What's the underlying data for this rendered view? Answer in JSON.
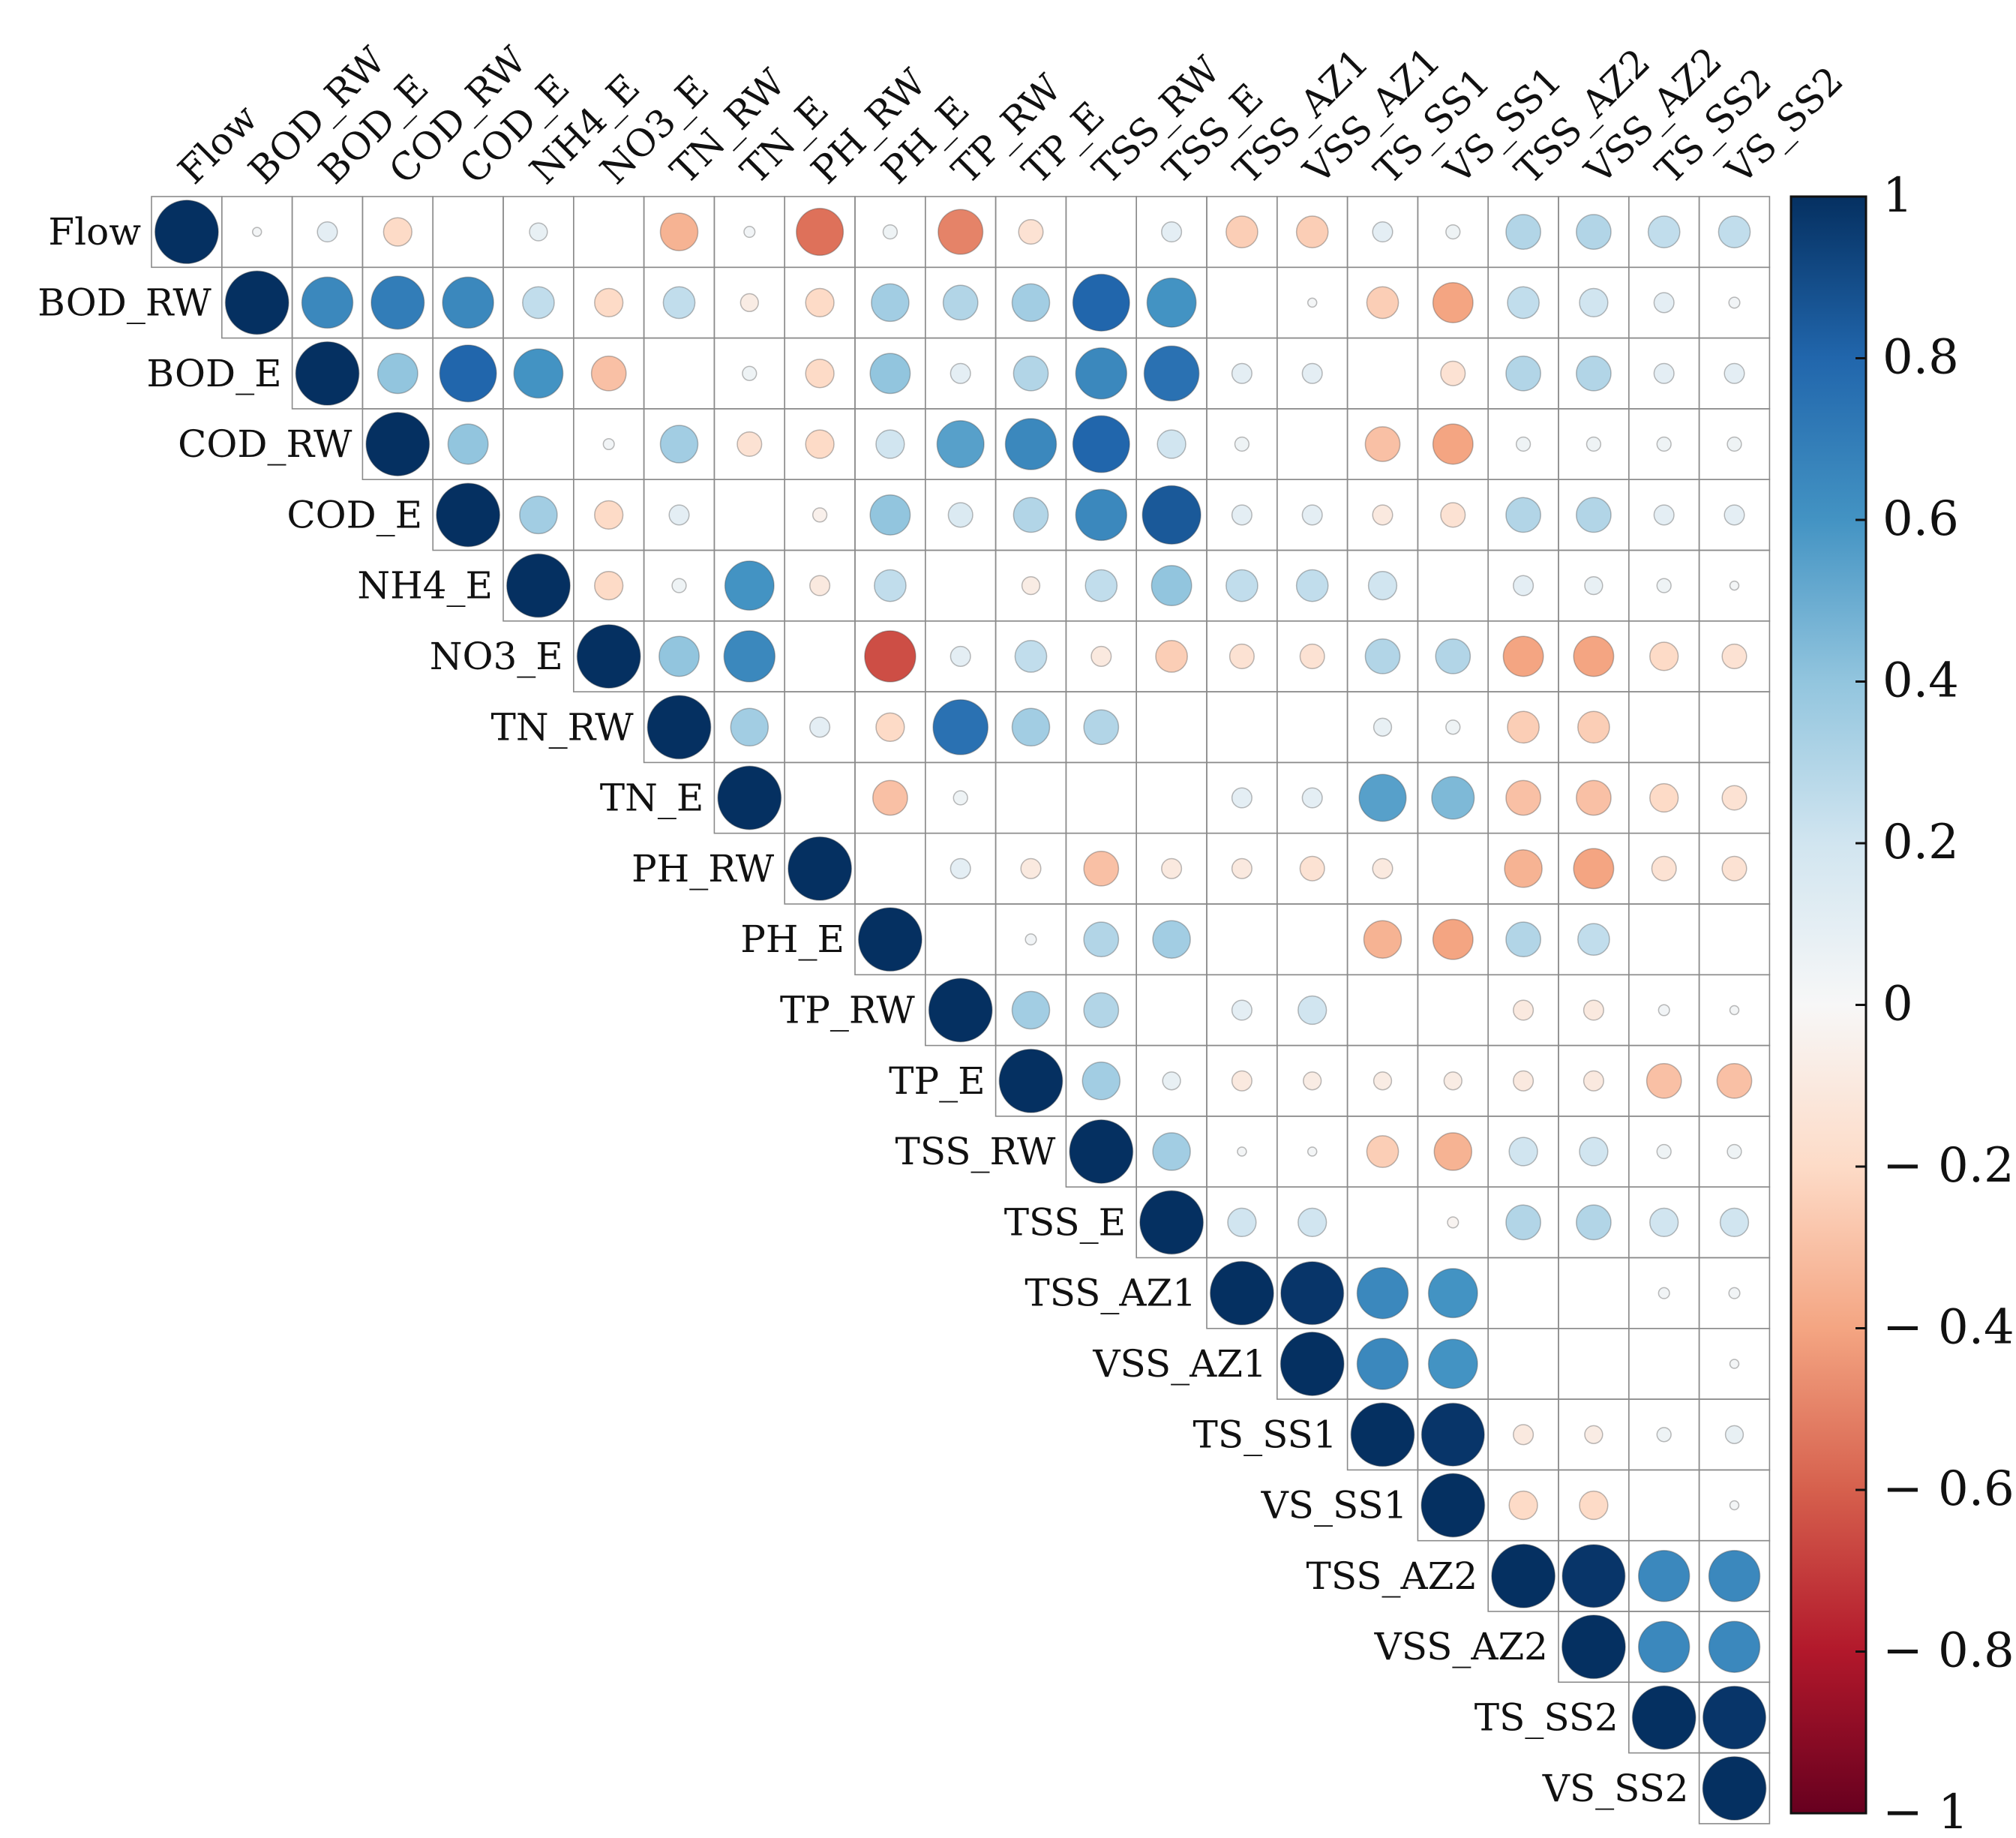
{
  "chart_data": {
    "type": "heatmap",
    "subtype": "upper-triangle correlation matrix (circle glyphs)",
    "title": "",
    "variables": [
      "Flow",
      "BOD_RW",
      "BOD_E",
      "COD_RW",
      "COD_E",
      "NH4_E",
      "NO3_E",
      "TN_RW",
      "TN_E",
      "PH_RW",
      "PH_E",
      "TP_RW",
      "TP_E",
      "TSS_RW",
      "TSS_E",
      "TSS_AZ1",
      "VSS_AZ1",
      "TS_SS1",
      "VS_SS1",
      "TSS_AZ2",
      "VSS_AZ2",
      "TS_SS2",
      "VS_SS2"
    ],
    "matrix": [
      [
        1.0,
        0.02,
        0.1,
        -0.2,
        0.0,
        0.08,
        0.0,
        -0.35,
        0.03,
        -0.55,
        0.05,
        -0.5,
        -0.15,
        0.0,
        0.1,
        -0.25,
        -0.25,
        0.1,
        0.05,
        0.3,
        0.3,
        0.25,
        0.25
      ],
      [
        null,
        1.0,
        0.65,
        0.7,
        0.65,
        0.25,
        -0.2,
        0.25,
        -0.08,
        -0.2,
        0.35,
        0.3,
        0.35,
        0.8,
        0.6,
        0.0,
        0.02,
        -0.25,
        -0.4,
        0.25,
        0.2,
        0.1,
        0.03
      ],
      [
        null,
        null,
        1.0,
        0.4,
        0.8,
        0.6,
        -0.3,
        0.0,
        0.05,
        -0.2,
        0.4,
        0.1,
        0.3,
        0.65,
        0.75,
        0.1,
        0.1,
        0.0,
        -0.15,
        0.3,
        0.3,
        0.1,
        0.1
      ],
      [
        null,
        null,
        null,
        1.0,
        0.4,
        0.0,
        0.03,
        0.35,
        -0.15,
        -0.2,
        0.2,
        0.55,
        0.65,
        0.8,
        0.2,
        0.05,
        0.0,
        -0.3,
        -0.4,
        0.05,
        0.05,
        0.05,
        0.05
      ],
      [
        null,
        null,
        null,
        null,
        1.0,
        0.35,
        -0.2,
        0.1,
        0.0,
        -0.05,
        0.4,
        0.15,
        0.3,
        0.65,
        0.85,
        0.1,
        0.1,
        -0.1,
        -0.15,
        0.3,
        0.3,
        0.1,
        0.1
      ],
      [
        null,
        null,
        null,
        null,
        null,
        1.0,
        -0.2,
        0.05,
        0.6,
        -0.1,
        0.25,
        0.0,
        -0.08,
        0.25,
        0.4,
        0.25,
        0.25,
        0.2,
        0.0,
        0.1,
        0.08,
        0.05,
        0.02
      ],
      [
        null,
        null,
        null,
        null,
        null,
        null,
        1.0,
        0.4,
        0.65,
        0.0,
        -0.65,
        0.1,
        0.25,
        -0.1,
        -0.25,
        -0.15,
        -0.15,
        0.3,
        0.3,
        -0.4,
        -0.4,
        -0.2,
        -0.15
      ],
      [
        null,
        null,
        null,
        null,
        null,
        null,
        null,
        1.0,
        0.35,
        0.1,
        -0.2,
        0.75,
        0.35,
        0.3,
        0.0,
        0.0,
        0.0,
        0.08,
        0.05,
        -0.25,
        -0.25,
        0.0,
        0.0
      ],
      [
        null,
        null,
        null,
        null,
        null,
        null,
        null,
        null,
        1.0,
        0.0,
        -0.3,
        0.05,
        0.0,
        0.0,
        0.0,
        0.1,
        0.1,
        0.55,
        0.45,
        -0.3,
        -0.3,
        -0.2,
        -0.15
      ],
      [
        null,
        null,
        null,
        null,
        null,
        null,
        null,
        null,
        null,
        1.0,
        0.0,
        0.1,
        -0.1,
        -0.3,
        -0.1,
        -0.1,
        -0.15,
        -0.1,
        0.0,
        -0.35,
        -0.4,
        -0.15,
        -0.15
      ],
      [
        null,
        null,
        null,
        null,
        null,
        null,
        null,
        null,
        null,
        null,
        1.0,
        0.0,
        0.03,
        0.3,
        0.35,
        0.0,
        0.0,
        -0.35,
        -0.4,
        0.3,
        0.25,
        0.0,
        0.0
      ],
      [
        null,
        null,
        null,
        null,
        null,
        null,
        null,
        null,
        null,
        null,
        null,
        1.0,
        0.35,
        0.3,
        0.0,
        0.1,
        0.2,
        0.0,
        0.0,
        -0.1,
        -0.1,
        0.03,
        0.02
      ],
      [
        null,
        null,
        null,
        null,
        null,
        null,
        null,
        null,
        null,
        null,
        null,
        null,
        1.0,
        0.35,
        0.08,
        -0.1,
        -0.08,
        -0.08,
        -0.08,
        -0.1,
        -0.1,
        -0.3,
        -0.3
      ],
      [
        null,
        null,
        null,
        null,
        null,
        null,
        null,
        null,
        null,
        null,
        null,
        null,
        null,
        1.0,
        0.35,
        0.02,
        0.02,
        -0.25,
        -0.35,
        0.2,
        0.2,
        0.05,
        0.05
      ],
      [
        null,
        null,
        null,
        null,
        null,
        null,
        null,
        null,
        null,
        null,
        null,
        null,
        null,
        null,
        1.0,
        0.2,
        0.2,
        0.0,
        -0.03,
        0.3,
        0.3,
        0.2,
        0.2
      ],
      [
        null,
        null,
        null,
        null,
        null,
        null,
        null,
        null,
        null,
        null,
        null,
        null,
        null,
        null,
        null,
        1.0,
        0.98,
        0.65,
        0.6,
        0.0,
        0.0,
        0.03,
        0.03
      ],
      [
        null,
        null,
        null,
        null,
        null,
        null,
        null,
        null,
        null,
        null,
        null,
        null,
        null,
        null,
        null,
        null,
        1.0,
        0.65,
        0.6,
        0.0,
        0.0,
        0.0,
        0.02
      ],
      [
        null,
        null,
        null,
        null,
        null,
        null,
        null,
        null,
        null,
        null,
        null,
        null,
        null,
        null,
        null,
        null,
        null,
        1.0,
        0.98,
        -0.1,
        -0.08,
        0.05,
        0.08
      ],
      [
        null,
        null,
        null,
        null,
        null,
        null,
        null,
        null,
        null,
        null,
        null,
        null,
        null,
        null,
        null,
        null,
        null,
        null,
        1.0,
        -0.2,
        -0.2,
        0.0,
        0.02
      ],
      [
        null,
        null,
        null,
        null,
        null,
        null,
        null,
        null,
        null,
        null,
        null,
        null,
        null,
        null,
        null,
        null,
        null,
        null,
        null,
        1.0,
        0.98,
        0.65,
        0.65
      ],
      [
        null,
        null,
        null,
        null,
        null,
        null,
        null,
        null,
        null,
        null,
        null,
        null,
        null,
        null,
        null,
        null,
        null,
        null,
        null,
        null,
        1.0,
        0.65,
        0.65
      ],
      [
        null,
        null,
        null,
        null,
        null,
        null,
        null,
        null,
        null,
        null,
        null,
        null,
        null,
        null,
        null,
        null,
        null,
        null,
        null,
        null,
        null,
        1.0,
        0.98
      ],
      [
        null,
        null,
        null,
        null,
        null,
        null,
        null,
        null,
        null,
        null,
        null,
        null,
        null,
        null,
        null,
        null,
        null,
        null,
        null,
        null,
        null,
        null,
        1.0
      ]
    ],
    "colorbar": {
      "range": [
        -1,
        1
      ],
      "ticks": [
        1,
        0.8,
        0.6,
        0.4,
        0.2,
        0,
        -0.2,
        -0.4,
        -0.6,
        -0.8,
        -1
      ],
      "tick_labels": [
        "1",
        "0.8",
        "0.6",
        "0.4",
        "0.2",
        "0",
        "− 0.2",
        "− 0.4",
        "− 0.6",
        "− 0.8",
        "− 1"
      ],
      "position": "right",
      "colors": {
        "neg1": "#67001f",
        "neg08": "#b2182b",
        "neg06": "#d6604d",
        "neg04": "#f4a582",
        "neg02": "#fddbc7",
        "zero": "#f7f7f7",
        "pos02": "#d1e5f0",
        "pos04": "#92c5de",
        "pos06": "#4393c3",
        "pos08": "#2166ac",
        "pos1": "#053061"
      }
    },
    "grid": true,
    "legend": "colorbar-right"
  }
}
